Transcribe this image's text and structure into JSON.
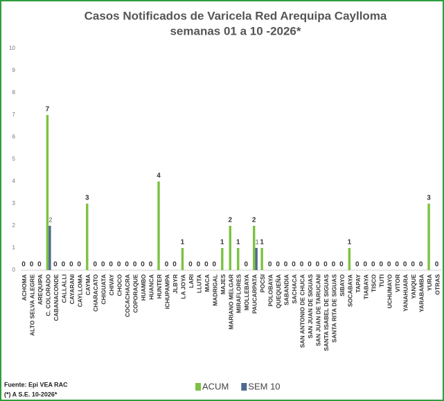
{
  "chart_data": {
    "type": "bar",
    "title": "Casos Notificados de Varicela Red Arequipa Caylloma",
    "subtitle": "semanas 01 a 10 -2026*",
    "source": "Fuente: Epi VEA RAC",
    "note": "(*) A S.E. 10-2026*",
    "categories": [
      "ACHOMA",
      "ALTO SELVA ALEGRE",
      "AREQUIPA",
      "C. COLORADO",
      "CABANACONDE",
      "CALLALLI",
      "CAYARANI",
      "CAYLLOMA",
      "CAYMA",
      "CHARACATO",
      "CHIGUATA",
      "CHIVAY",
      "CHOCO",
      "COCACHACRA",
      "COPORAQUE",
      "HUAMBO",
      "HUANCA",
      "HUNTER",
      "ICHUPAMPA",
      "JLBYR",
      "LA JOYA",
      "LARI",
      "LLUTA",
      "MACA",
      "MADRIGAL",
      "MAJES",
      "MARIANO MELGAR",
      "MIRAFLORES",
      "MOLLEBAYA",
      "PAUCARPATA",
      "POCSI",
      "POLOBAYA",
      "QUEQUEÑA",
      "SABANDIA",
      "SACHACA",
      "SAN ANTONIO DE CHUCA",
      "SAN JUAN DE SIGUAS",
      "SAN JUAN DE TARUCANI",
      "SANTA ISABEL DE SIGUAS",
      "SANTA RITA DE SIGUAS",
      "SIBAYO",
      "SOCABAYA",
      "TAPAY",
      "TIABAYA",
      "TISCO",
      "TUTI",
      "UCHUMAYO",
      "VITOR",
      "YANAHUARA",
      "YANQUE",
      "YARABAMBA",
      "YURA",
      "OTRAS"
    ],
    "series": [
      {
        "name": "ACUM",
        "color": "#7dc242",
        "values": [
          0,
          0,
          0,
          7,
          0,
          0,
          0,
          0,
          3,
          0,
          0,
          0,
          0,
          0,
          0,
          0,
          0,
          4,
          0,
          0,
          1,
          0,
          0,
          0,
          0,
          1,
          2,
          1,
          0,
          2,
          1,
          0,
          0,
          0,
          0,
          0,
          0,
          0,
          0,
          0,
          0,
          1,
          0,
          0,
          0,
          0,
          0,
          0,
          0,
          0,
          0,
          3,
          0
        ]
      },
      {
        "name": "SEM 10",
        "color": "#4f6a8f",
        "values": [
          null,
          null,
          null,
          2,
          null,
          null,
          null,
          null,
          null,
          null,
          null,
          null,
          null,
          null,
          null,
          null,
          null,
          null,
          null,
          null,
          null,
          null,
          null,
          null,
          null,
          null,
          null,
          null,
          null,
          1,
          null,
          null,
          null,
          null,
          null,
          null,
          null,
          null,
          null,
          null,
          null,
          null,
          null,
          null,
          null,
          null,
          null,
          null,
          null,
          null,
          null,
          null,
          null
        ]
      }
    ],
    "ylim": [
      0,
      10
    ],
    "yticks": [
      0,
      1,
      2,
      3,
      4,
      5,
      6,
      7,
      8,
      9,
      10
    ],
    "grid": false,
    "legend": "bottom"
  }
}
